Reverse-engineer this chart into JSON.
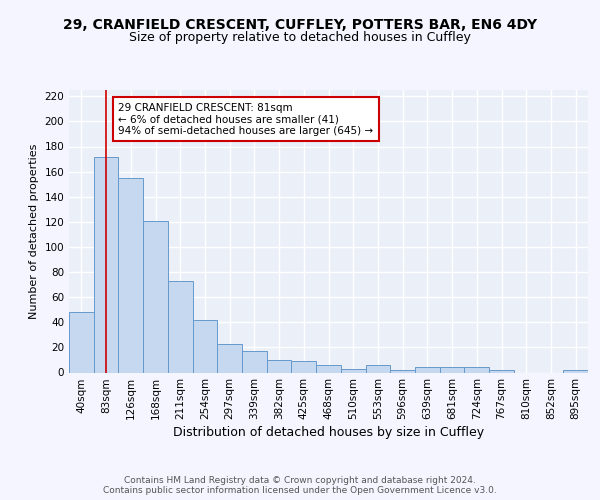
{
  "title1": "29, CRANFIELD CRESCENT, CUFFLEY, POTTERS BAR, EN6 4DY",
  "title2": "Size of property relative to detached houses in Cuffley",
  "xlabel": "Distribution of detached houses by size in Cuffley",
  "ylabel": "Number of detached properties",
  "categories": [
    "40sqm",
    "83sqm",
    "126sqm",
    "168sqm",
    "211sqm",
    "254sqm",
    "297sqm",
    "339sqm",
    "382sqm",
    "425sqm",
    "468sqm",
    "510sqm",
    "553sqm",
    "596sqm",
    "639sqm",
    "681sqm",
    "724sqm",
    "767sqm",
    "810sqm",
    "852sqm",
    "895sqm"
  ],
  "values": [
    48,
    172,
    155,
    121,
    73,
    42,
    23,
    17,
    10,
    9,
    6,
    3,
    6,
    2,
    4,
    4,
    4,
    2,
    0,
    0,
    2
  ],
  "bar_color": "#c5d8f0",
  "bar_edge_color": "#6699cc",
  "vline_x": 1,
  "vline_color": "#cc0000",
  "annotation_text": "29 CRANFIELD CRESCENT: 81sqm\n← 6% of detached houses are smaller (41)\n94% of semi-detached houses are larger (645) →",
  "annotation_box_color": "#ffffff",
  "annotation_box_edge": "#cc0000",
  "ylim": [
    0,
    225
  ],
  "yticks": [
    0,
    20,
    40,
    60,
    80,
    100,
    120,
    140,
    160,
    180,
    200,
    220
  ],
  "bg_color": "#eaeff8",
  "grid_color": "#ffffff",
  "fig_bg_color": "#f5f5ff",
  "footer": "Contains HM Land Registry data © Crown copyright and database right 2024.\nContains public sector information licensed under the Open Government Licence v3.0.",
  "title1_fontsize": 10,
  "title2_fontsize": 9,
  "xlabel_fontsize": 9,
  "ylabel_fontsize": 8,
  "tick_fontsize": 7.5,
  "footer_fontsize": 6.5
}
